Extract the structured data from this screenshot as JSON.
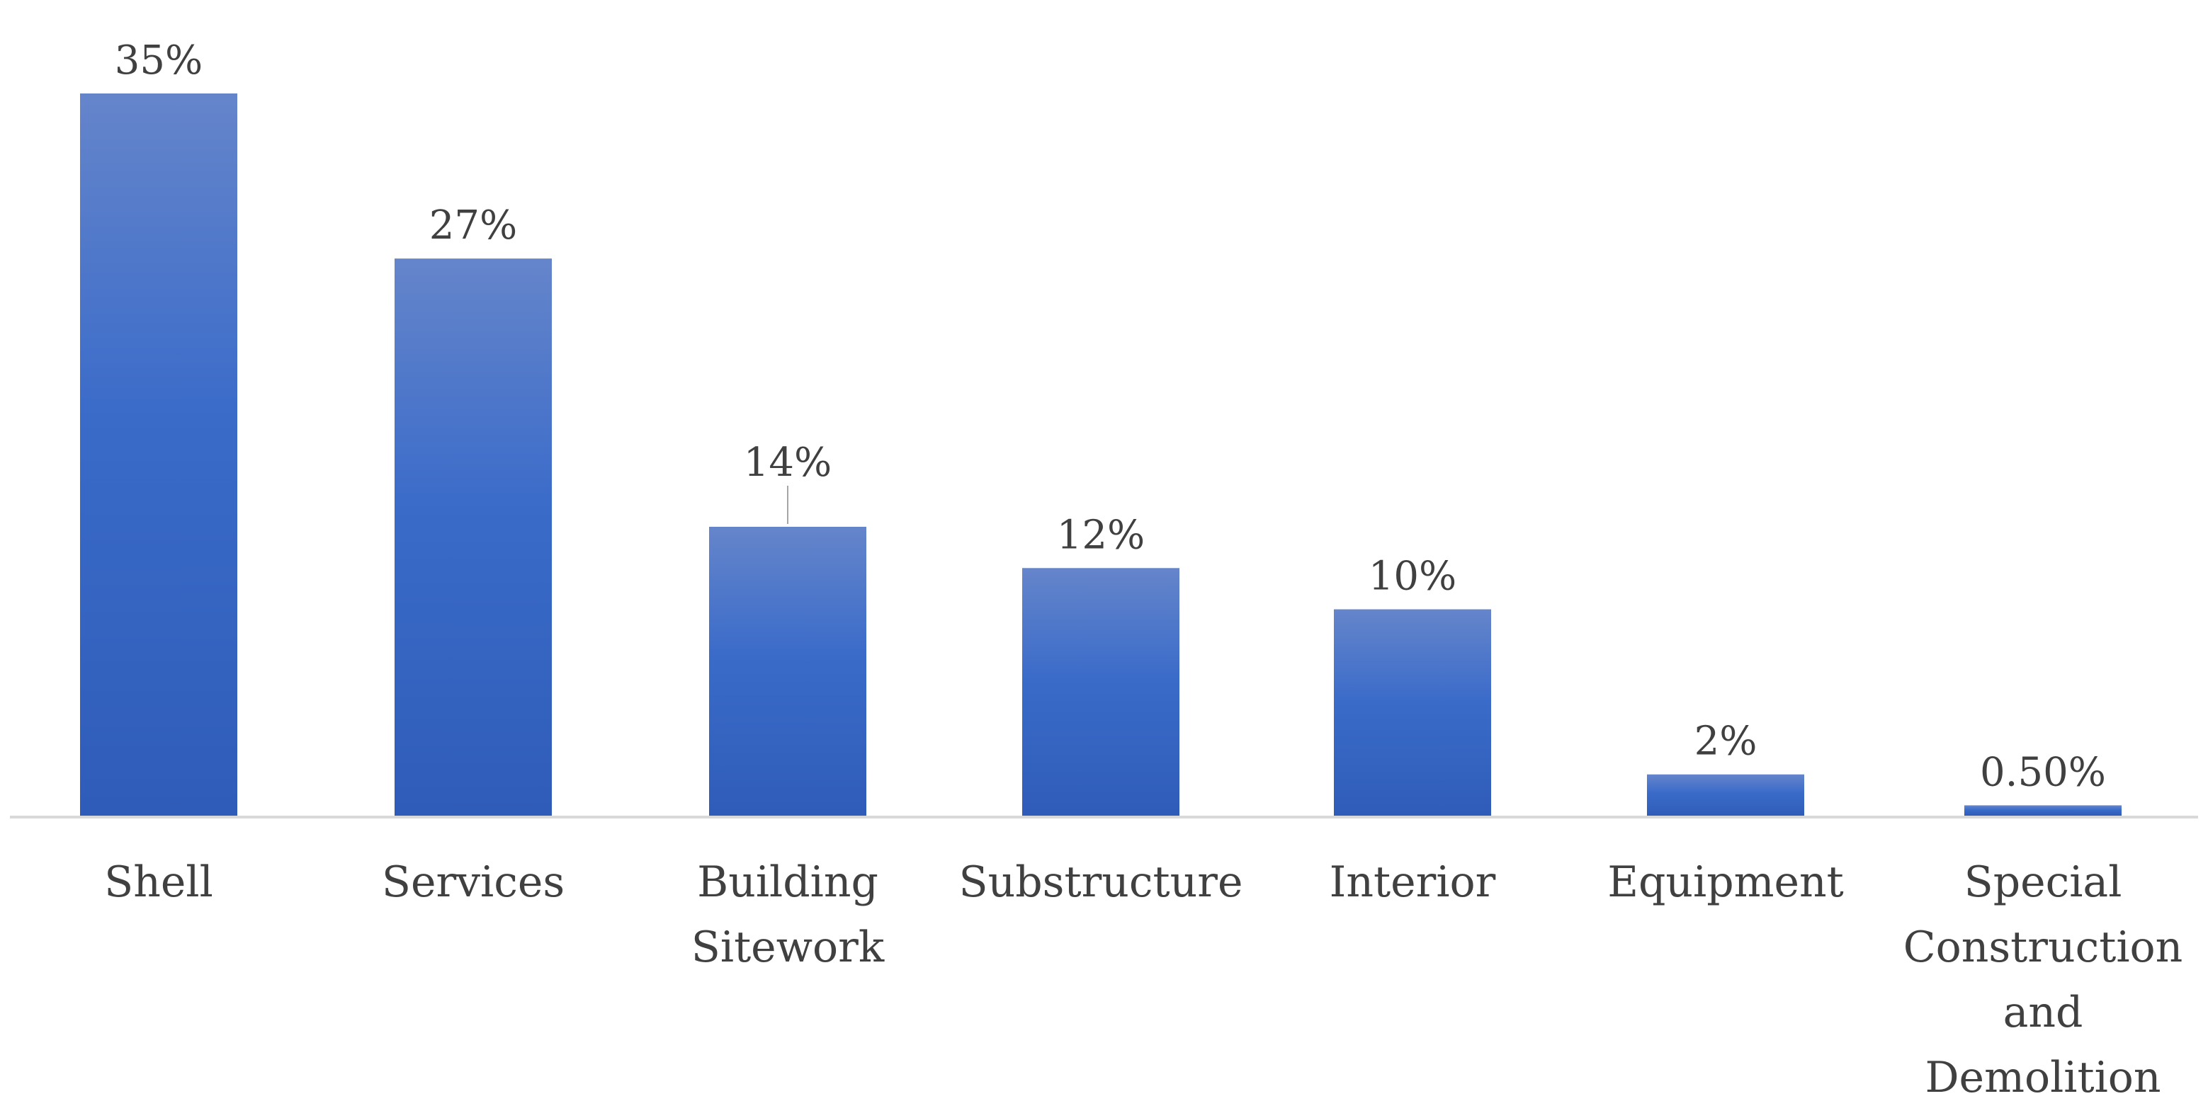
{
  "chart_data": {
    "type": "bar",
    "title": "",
    "xlabel": "",
    "ylabel": "",
    "categories": [
      "Shell",
      "Services",
      "Building Sitework",
      "Substructure",
      "Interior",
      "Equipment",
      "Special Construction and Demolition"
    ],
    "category_lines": [
      [
        "Shell"
      ],
      [
        "Services"
      ],
      [
        "Building",
        "Sitework"
      ],
      [
        "Substructure"
      ],
      [
        "Interior"
      ],
      [
        "Equipment"
      ],
      [
        "Special",
        "Construction",
        "and",
        "Demolition"
      ]
    ],
    "values": [
      35,
      27,
      14,
      12,
      10,
      2,
      0.5
    ],
    "data_labels": [
      "35%",
      "27%",
      "14%",
      "12%",
      "10%",
      "2%",
      "0.50%"
    ],
    "ylim": [
      0,
      35
    ],
    "grid": false,
    "legend": "none",
    "colors": {
      "bar_top": "#6585cb",
      "bar_mid": "#3a6bc9",
      "bar_bottom": "#2f5cb8",
      "axis": "#d9d9d9",
      "text": "#404040"
    }
  }
}
